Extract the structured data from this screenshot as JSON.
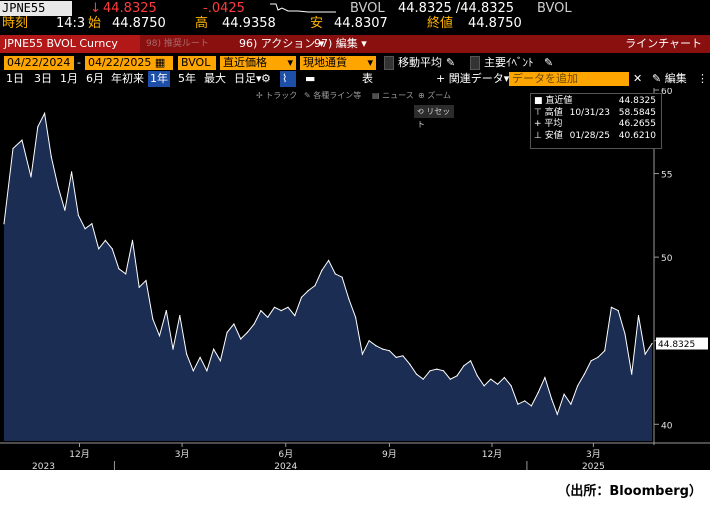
{
  "quote": {
    "ticker": "JPNE55",
    "arrow": "↓",
    "last": "44.8325",
    "change": "-.0425",
    "field": "BVOL",
    "bid_ask": "44.8325 /44.8325",
    "field2": "BVOL",
    "time_label": "時刻",
    "time": "14:3",
    "open_label": "始",
    "open": "44.8750",
    "high_label": "高",
    "high": "44.9358",
    "low_label": "安",
    "low": "44.8307",
    "close_label": "終値",
    "close": "44.8750"
  },
  "toolbar": {
    "title": "JPNE55 BVOL Curncy",
    "item_96_prefix": "96)",
    "item_96": "アクション",
    "item_97_prefix": "97)",
    "item_97": "編集",
    "dim_item": "98) 推奨ルート",
    "right": "ラインチャート"
  },
  "controls": {
    "start_date": "04/22/2024",
    "end_date": "04/22/2025",
    "source_field": "BVOL",
    "price_type": "直近価格",
    "currency": "現地通貨",
    "ma_label": "移動平均",
    "events_label": "主要ｲﾍﾞﾝﾄ",
    "periods": [
      "1日",
      "3日",
      "1月",
      "6月",
      "年初来",
      "1年",
      "5年",
      "最大"
    ],
    "active_period": "1年",
    "interval": "日足",
    "table_label": "表",
    "related_label": "関連データ",
    "add_data_placeholder": "データを追加",
    "edit_label": "編集",
    "sub_tools": [
      "トラック",
      "各種ライン等",
      "ニュース",
      "ズーム"
    ],
    "reset_label": "リセット"
  },
  "legend": {
    "rows": [
      {
        "label": "直近値",
        "date": "",
        "value": "44.8325"
      },
      {
        "label": "高値",
        "date": "10/31/23",
        "value": "58.5845"
      },
      {
        "label": "平均",
        "date": "",
        "value": "46.2655"
      },
      {
        "label": "安値",
        "date": "01/28/25",
        "value": "40.6210"
      }
    ]
  },
  "chart_data": {
    "type": "area",
    "ylim": [
      39,
      60
    ],
    "yticks": [
      40,
      45,
      50,
      55,
      60
    ],
    "last_value_label": "44.8325",
    "x_ticks": [
      "12月",
      "3月",
      "6月",
      "9月",
      "12月",
      "3月"
    ],
    "year_labels": [
      "2023",
      "2024",
      "2025"
    ],
    "colors": {
      "line": "#ffffff",
      "fill": "#1b2d52",
      "background": "#000000"
    },
    "x_start": "2023-09-25",
    "x_end": "2025-04-22",
    "series": [
      {
        "dates": [
          "2023-09-25",
          "2023-10-03",
          "2023-10-11",
          "2023-10-19",
          "2023-10-25",
          "2023-10-31",
          "2023-11-06",
          "2023-11-12",
          "2023-11-18",
          "2023-11-24",
          "2023-11-30",
          "2023-12-06",
          "2023-12-12",
          "2023-12-18",
          "2023-12-24",
          "2023-12-30",
          "2024-01-05",
          "2024-01-11",
          "2024-01-17",
          "2024-01-23",
          "2024-01-29",
          "2024-02-04",
          "2024-02-10",
          "2024-02-16",
          "2024-02-22",
          "2024-02-28",
          "2024-03-05",
          "2024-03-11",
          "2024-03-17",
          "2024-03-23",
          "2024-03-29",
          "2024-04-04",
          "2024-04-10",
          "2024-04-16",
          "2024-04-22",
          "2024-04-28",
          "2024-05-04",
          "2024-05-10",
          "2024-05-16",
          "2024-05-22",
          "2024-05-28",
          "2024-06-03",
          "2024-06-09",
          "2024-06-15",
          "2024-06-21",
          "2024-06-27",
          "2024-07-03",
          "2024-07-09",
          "2024-07-15",
          "2024-07-21",
          "2024-07-27",
          "2024-08-02",
          "2024-08-08",
          "2024-08-14",
          "2024-08-20",
          "2024-08-26",
          "2024-09-01",
          "2024-09-07",
          "2024-09-13",
          "2024-09-19",
          "2024-09-25",
          "2024-10-01",
          "2024-10-07",
          "2024-10-13",
          "2024-10-19",
          "2024-10-25",
          "2024-10-31",
          "2024-11-06",
          "2024-11-12",
          "2024-11-18",
          "2024-11-24",
          "2024-11-30",
          "2024-12-06",
          "2024-12-12",
          "2024-12-18",
          "2024-12-24",
          "2024-12-30",
          "2025-01-05",
          "2025-01-11",
          "2025-01-17",
          "2025-01-23",
          "2025-01-28",
          "2025-02-03",
          "2025-02-09",
          "2025-02-15",
          "2025-02-21",
          "2025-02-27",
          "2025-03-05",
          "2025-03-11",
          "2025-03-17",
          "2025-03-23",
          "2025-03-29",
          "2025-04-04",
          "2025-04-10",
          "2025-04-16",
          "2025-04-22"
        ],
        "values": [
          52.0,
          56.5,
          57.0,
          54.8,
          57.8,
          58.6,
          56.0,
          54.2,
          52.8,
          55.1,
          52.5,
          51.7,
          52.0,
          50.5,
          51.0,
          50.5,
          49.3,
          49.0,
          51.0,
          48.2,
          48.6,
          46.3,
          45.3,
          46.8,
          44.5,
          46.5,
          44.2,
          43.2,
          44.0,
          43.2,
          44.5,
          43.8,
          45.5,
          46.0,
          45.1,
          45.5,
          46.0,
          46.8,
          46.4,
          47.0,
          46.8,
          47.0,
          46.5,
          47.6,
          48.0,
          48.3,
          49.2,
          49.8,
          49.0,
          48.8,
          47.5,
          46.4,
          44.2,
          45.0,
          44.7,
          44.5,
          44.4,
          44.0,
          44.1,
          43.6,
          43.0,
          42.7,
          43.2,
          43.3,
          43.2,
          42.7,
          42.9,
          43.5,
          43.8,
          42.9,
          42.3,
          42.7,
          42.4,
          42.8,
          42.3,
          41.2,
          41.4,
          41.1,
          41.9,
          42.8,
          41.5,
          40.6,
          41.8,
          41.2,
          42.3,
          43.0,
          43.8,
          44.0,
          44.4,
          47.0,
          46.8,
          45.4,
          43.0,
          46.5,
          44.2,
          44.8325
        ]
      }
    ]
  },
  "footer": {
    "source": "（出所：Bloomberg）"
  }
}
